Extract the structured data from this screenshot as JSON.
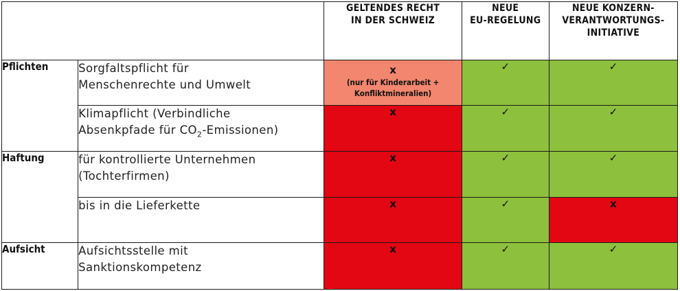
{
  "header": {
    "col_ch": "GELTENDES RECHT IN DER SCHWEIZ",
    "col_eu_line1": "NEUE",
    "col_eu_line2": "EU-REGELUNG",
    "col_kvi_line1": "NEUE KONZERN-",
    "col_kvi_line2": "VERANTWORTUNGS-",
    "col_kvi_line3": "INITIATIVE"
  },
  "rows": [
    {
      "category": "Pflichten",
      "desc_line1": "Sorgfaltspflicht für",
      "desc_line2": "Menschenrechte und Umwelt",
      "ch_mark": "x",
      "ch_note_line1": "(nur für Kinderarbeit +",
      "ch_note_line2": "Konfliktmineralien)",
      "ch_color": "#f2866e",
      "eu_mark": "✓",
      "eu_color": "#8dc03c",
      "kvi_mark": "✓",
      "kvi_color": "#8dc03c"
    },
    {
      "category": "",
      "desc_line1": "Klimapflicht (Verbindliche",
      "desc_line2_pre": "Absenkpfade für CO",
      "desc_line2_sub": "2",
      "desc_line2_post": "-Emissionen)",
      "ch_mark": "x",
      "ch_color": "#e30613",
      "eu_mark": "✓",
      "eu_color": "#8dc03c",
      "kvi_mark": "✓",
      "kvi_color": "#8dc03c"
    },
    {
      "category": "Haftung",
      "desc_line1": "für kontrollierte Unternehmen",
      "desc_line2": "(Tochterfirmen)",
      "ch_mark": "x",
      "ch_color": "#e30613",
      "eu_mark": "✓",
      "eu_color": "#8dc03c",
      "kvi_mark": "✓",
      "kvi_color": "#8dc03c"
    },
    {
      "category": "",
      "desc_line1": "bis in die Lieferkette",
      "ch_mark": "x",
      "ch_color": "#e30613",
      "eu_mark": "✓",
      "eu_color": "#8dc03c",
      "kvi_mark": "x",
      "kvi_color": "#e30613"
    },
    {
      "category": "Aufsicht",
      "desc_line1": "Aufsichtsstelle mit",
      "desc_line2": "Sanktionskompetenz",
      "ch_mark": "x",
      "ch_color": "#e30613",
      "eu_mark": "✓",
      "eu_color": "#8dc03c",
      "kvi_mark": "✓",
      "kvi_color": "#8dc03c"
    }
  ]
}
